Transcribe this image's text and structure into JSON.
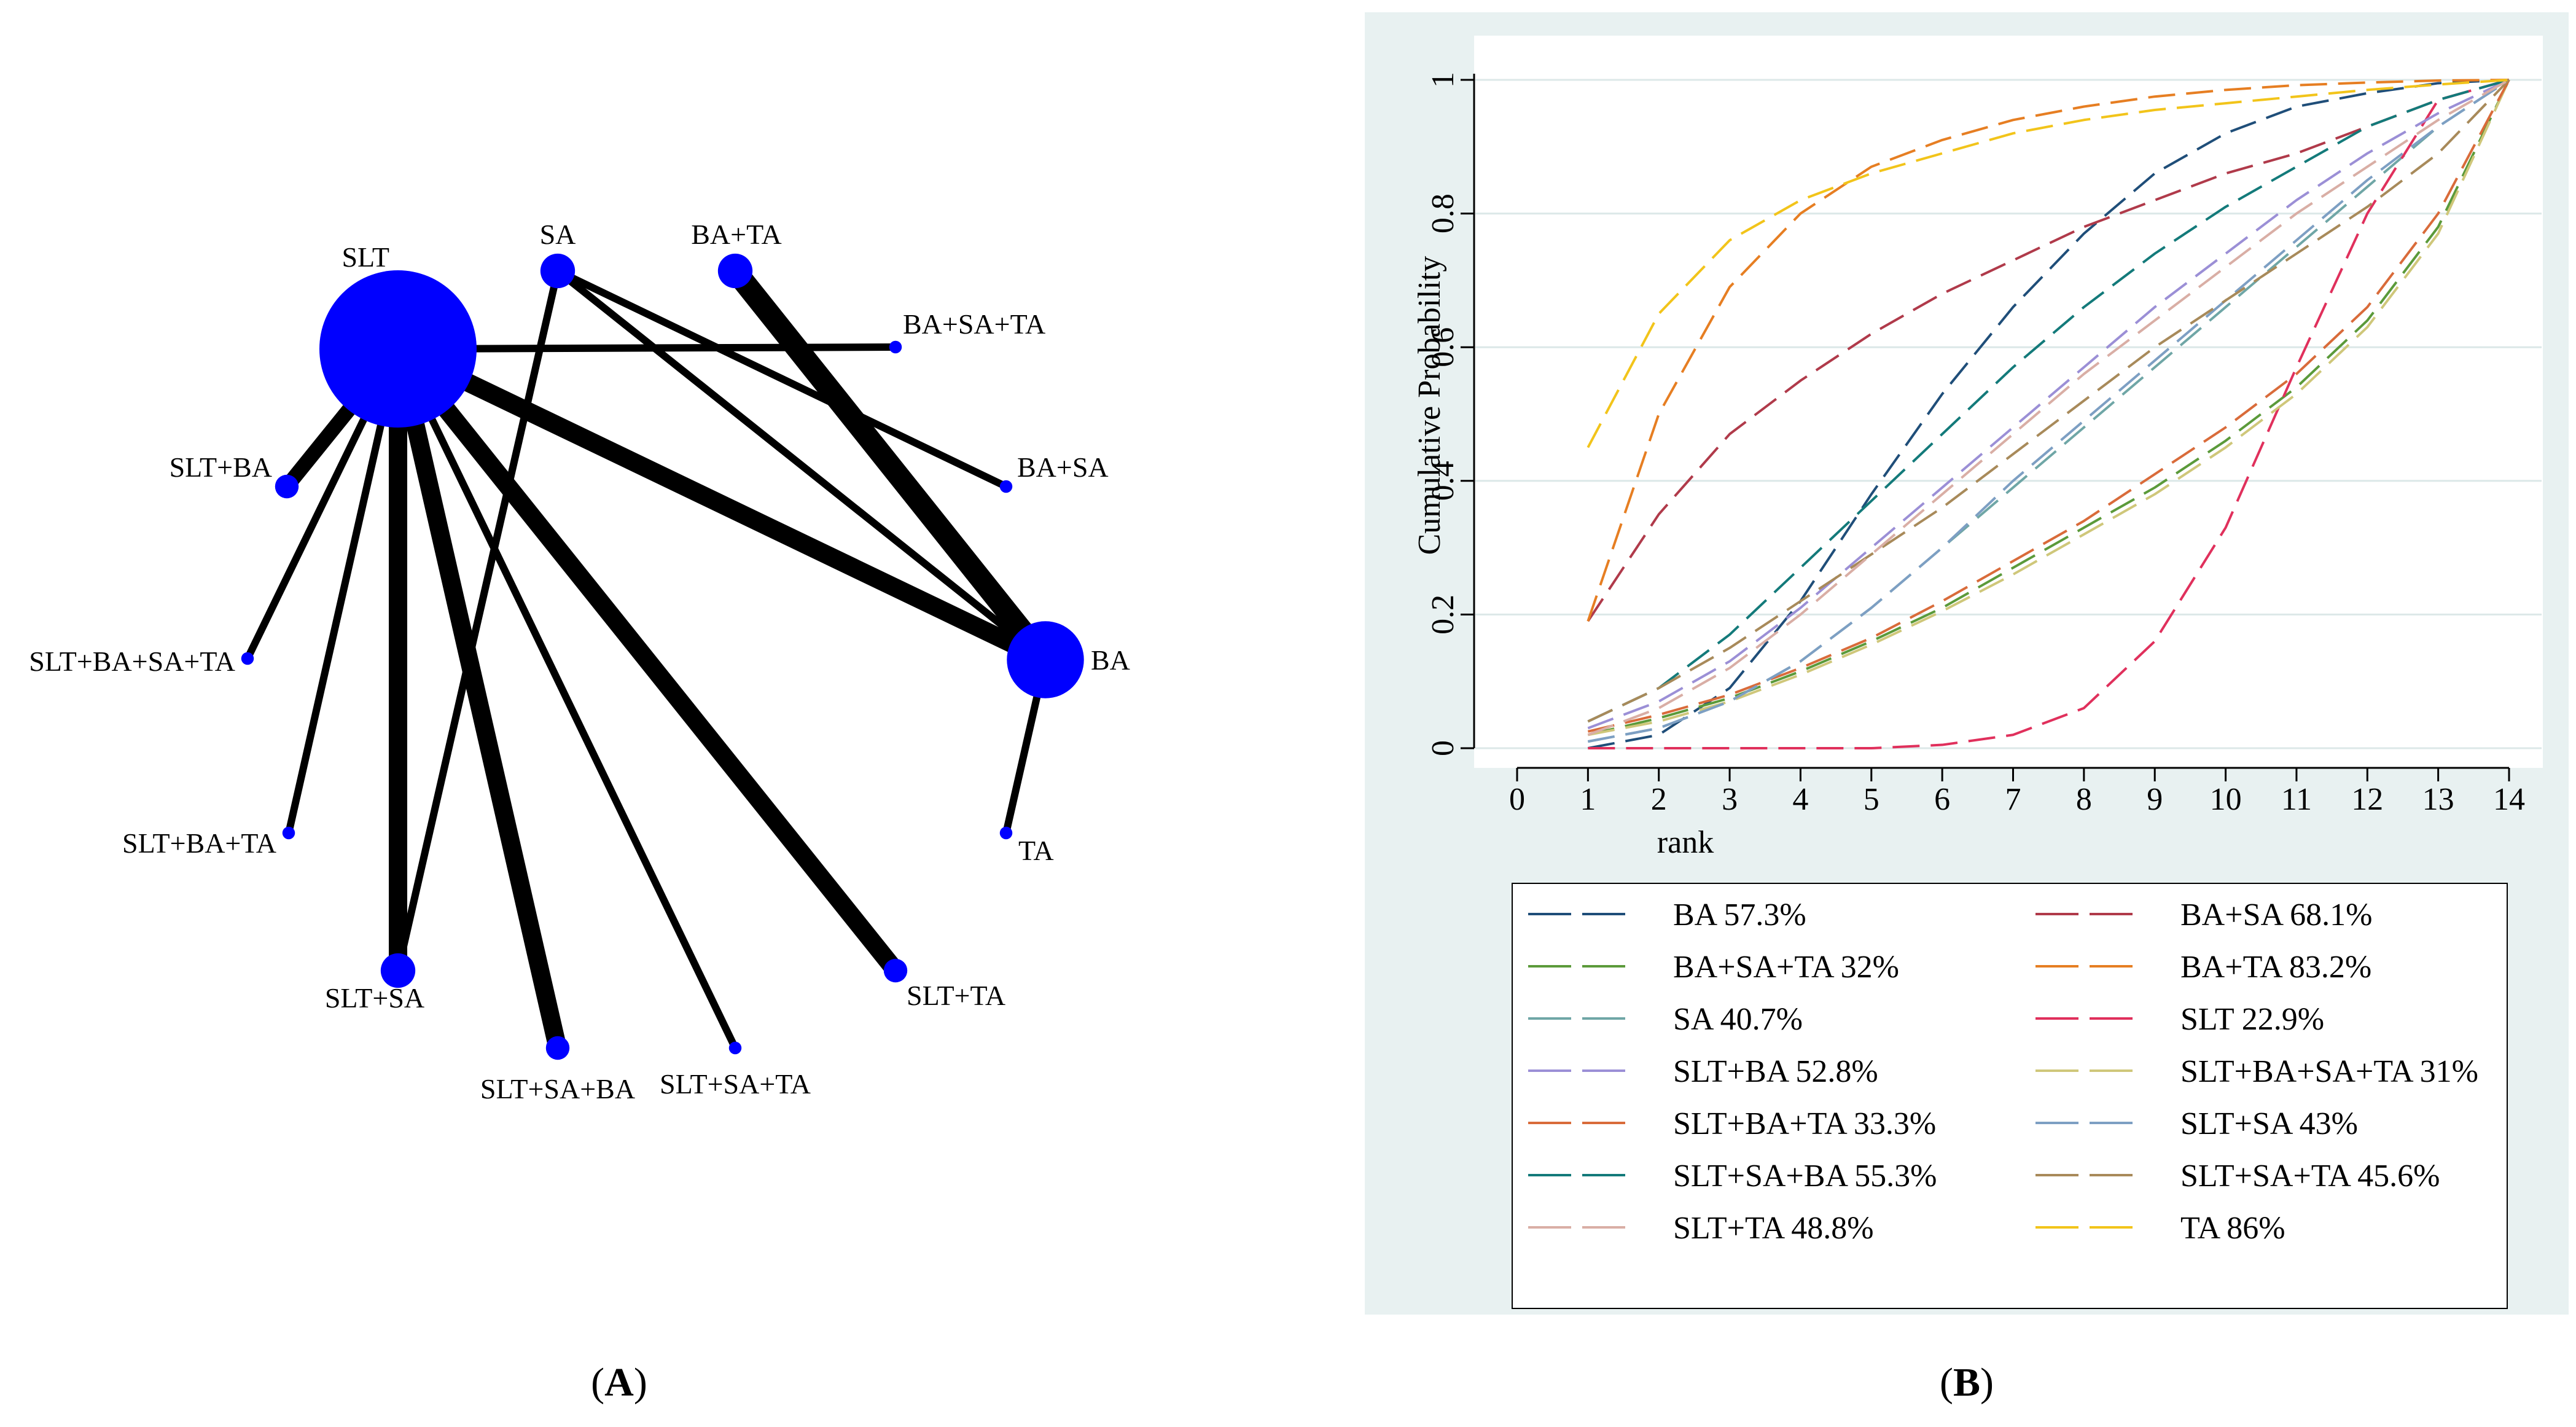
{
  "panels": {
    "a": {
      "label_open": "(",
      "label_letter": "A",
      "label_close": ")"
    },
    "b": {
      "label_open": "(",
      "label_letter": "B",
      "label_close": ")"
    }
  },
  "network": {
    "node_color": "#0000ff",
    "edge_color": "#000000",
    "nodes": [
      {
        "id": "SLT",
        "label": "SLT",
        "relative_size": 1.0
      },
      {
        "id": "SA",
        "label": "SA",
        "relative_size": 0.22
      },
      {
        "id": "BA+TA",
        "label": "BA+TA",
        "relative_size": 0.22
      },
      {
        "id": "BA+SA+TA",
        "label": "BA+SA+TA",
        "relative_size": 0.08
      },
      {
        "id": "SLT+BA",
        "label": "SLT+BA",
        "relative_size": 0.15
      },
      {
        "id": "BA+SA",
        "label": "BA+SA",
        "relative_size": 0.08
      },
      {
        "id": "SLT+BA+SA+TA",
        "label": "SLT+BA+SA+TA",
        "relative_size": 0.08
      },
      {
        "id": "BA",
        "label": "BA",
        "relative_size": 0.49
      },
      {
        "id": "SLT+BA+TA",
        "label": "SLT+BA+TA",
        "relative_size": 0.08
      },
      {
        "id": "TA",
        "label": "TA",
        "relative_size": 0.08
      },
      {
        "id": "SLT+SA",
        "label": "SLT+SA",
        "relative_size": 0.22
      },
      {
        "id": "SLT+TA",
        "label": "SLT+TA",
        "relative_size": 0.15
      },
      {
        "id": "SLT+SA+BA",
        "label": "SLT+SA+BA",
        "relative_size": 0.15
      },
      {
        "id": "SLT+SA+TA",
        "label": "SLT+SA+TA",
        "relative_size": 0.08
      }
    ],
    "edges": [
      {
        "from": "SLT",
        "to": "BA+SA+TA",
        "weight": 2
      },
      {
        "from": "SLT",
        "to": "SLT+BA",
        "weight": 4
      },
      {
        "from": "SLT",
        "to": "SLT+BA+SA+TA",
        "weight": 2
      },
      {
        "from": "SLT",
        "to": "SLT+BA+TA",
        "weight": 2
      },
      {
        "from": "SLT",
        "to": "SLT+SA",
        "weight": 5
      },
      {
        "from": "SLT",
        "to": "SLT+SA+BA",
        "weight": 5
      },
      {
        "from": "SLT",
        "to": "SLT+SA+TA",
        "weight": 2
      },
      {
        "from": "SLT",
        "to": "SLT+TA",
        "weight": 5
      },
      {
        "from": "SLT",
        "to": "BA",
        "weight": 5
      },
      {
        "from": "SA",
        "to": "BA+SA",
        "weight": 2
      },
      {
        "from": "SA",
        "to": "BA",
        "weight": 2
      },
      {
        "from": "SA",
        "to": "SLT+SA",
        "weight": 2
      },
      {
        "from": "BA+TA",
        "to": "BA",
        "weight": 6
      },
      {
        "from": "BA",
        "to": "TA",
        "weight": 2
      }
    ]
  },
  "chart_data": {
    "type": "line",
    "xlabel": "rank",
    "ylabel": "Cumulative Probability",
    "xlim": [
      0,
      14
    ],
    "ylim": [
      0,
      1
    ],
    "x_ticks": [
      "0",
      "1",
      "2",
      "3",
      "4",
      "5",
      "6",
      "7",
      "8",
      "9",
      "10",
      "11",
      "12",
      "13",
      "14"
    ],
    "y_ticks": [
      "0",
      "0.2",
      "0.4",
      "0.6",
      "0.8",
      "1"
    ],
    "grid": "horizontal",
    "line_style": "dashed",
    "panel_background": "#e8f1f1",
    "legend_position": "bottom",
    "x": [
      1,
      2,
      3,
      4,
      5,
      6,
      7,
      8,
      9,
      10,
      11,
      12,
      13,
      14
    ],
    "series": [
      {
        "name": "BA 57.3%",
        "color": "#1f4e79",
        "values": [
          0.0,
          0.02,
          0.09,
          0.22,
          0.38,
          0.53,
          0.66,
          0.77,
          0.86,
          0.92,
          0.96,
          0.98,
          0.995,
          1.0
        ]
      },
      {
        "name": "BA+SA 68.1%",
        "color": "#b03a4a",
        "values": [
          0.19,
          0.35,
          0.47,
          0.55,
          0.62,
          0.68,
          0.73,
          0.78,
          0.82,
          0.86,
          0.89,
          0.93,
          0.97,
          1.0
        ]
      },
      {
        "name": "BA+SA+TA 32%",
        "color": "#5b9a3a",
        "values": [
          0.02,
          0.045,
          0.075,
          0.115,
          0.16,
          0.21,
          0.27,
          0.33,
          0.39,
          0.46,
          0.54,
          0.64,
          0.78,
          1.0
        ]
      },
      {
        "name": "BA+TA 83.2%",
        "color": "#e67e22",
        "values": [
          0.19,
          0.5,
          0.69,
          0.8,
          0.87,
          0.91,
          0.94,
          0.96,
          0.975,
          0.985,
          0.992,
          0.996,
          0.999,
          1.0
        ]
      },
      {
        "name": "SA 40.7%",
        "color": "#6fa6a6",
        "values": [
          0.01,
          0.03,
          0.07,
          0.13,
          0.21,
          0.3,
          0.39,
          0.48,
          0.57,
          0.66,
          0.75,
          0.84,
          0.93,
          1.0
        ]
      },
      {
        "name": "SLT 22.9%",
        "color": "#e0305c",
        "values": [
          0.0,
          0.0,
          0.0,
          0.0,
          0.0,
          0.005,
          0.02,
          0.06,
          0.16,
          0.33,
          0.57,
          0.8,
          0.97,
          1.0
        ]
      },
      {
        "name": "SLT+BA 52.8%",
        "color": "#9b8fd6",
        "values": [
          0.03,
          0.07,
          0.13,
          0.21,
          0.3,
          0.39,
          0.48,
          0.57,
          0.66,
          0.74,
          0.82,
          0.89,
          0.95,
          1.0
        ]
      },
      {
        "name": "SLT+BA+SA+TA 31%",
        "color": "#cfc77a",
        "values": [
          0.02,
          0.04,
          0.07,
          0.11,
          0.155,
          0.205,
          0.26,
          0.32,
          0.38,
          0.45,
          0.53,
          0.63,
          0.77,
          1.0
        ]
      },
      {
        "name": "SLT+BA+TA 33.3%",
        "color": "#d96b3a",
        "values": [
          0.025,
          0.05,
          0.08,
          0.12,
          0.165,
          0.22,
          0.28,
          0.34,
          0.41,
          0.48,
          0.56,
          0.66,
          0.8,
          1.0
        ]
      },
      {
        "name": "SLT+SA 43%",
        "color": "#7d9fc3",
        "values": [
          0.01,
          0.03,
          0.07,
          0.13,
          0.21,
          0.3,
          0.4,
          0.49,
          0.58,
          0.67,
          0.76,
          0.85,
          0.93,
          1.0
        ]
      },
      {
        "name": "SLT+SA+BA 55.3%",
        "color": "#137a7a",
        "values": [
          0.04,
          0.09,
          0.17,
          0.27,
          0.37,
          0.47,
          0.57,
          0.66,
          0.74,
          0.81,
          0.87,
          0.93,
          0.97,
          1.0
        ]
      },
      {
        "name": "SLT+SA+TA 45.6%",
        "color": "#a88a5a",
        "values": [
          0.04,
          0.09,
          0.15,
          0.22,
          0.29,
          0.36,
          0.44,
          0.52,
          0.6,
          0.67,
          0.74,
          0.81,
          0.89,
          1.0
        ]
      },
      {
        "name": "SLT+TA 48.8%",
        "color": "#d9aea5",
        "values": [
          0.02,
          0.06,
          0.12,
          0.2,
          0.29,
          0.38,
          0.47,
          0.56,
          0.64,
          0.72,
          0.8,
          0.87,
          0.94,
          1.0
        ]
      },
      {
        "name": "TA 86%",
        "color": "#f2c41a",
        "values": [
          0.45,
          0.65,
          0.76,
          0.82,
          0.86,
          0.89,
          0.92,
          0.94,
          0.955,
          0.965,
          0.975,
          0.985,
          0.993,
          1.0
        ]
      }
    ]
  }
}
